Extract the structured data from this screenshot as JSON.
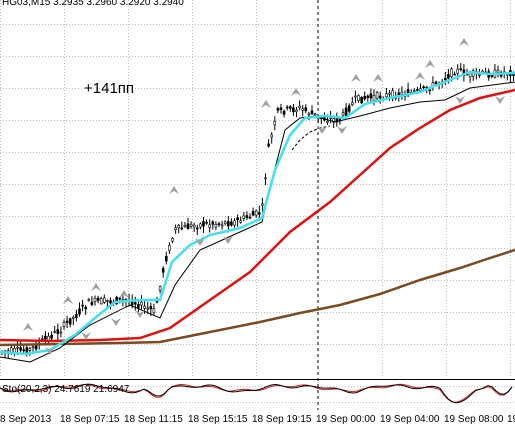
{
  "header": {
    "symbol_timeframe": "HG03,M15",
    "quote_values": "3.2935 3.2960 3.2920 3.2940"
  },
  "annotation": {
    "text": "+141пп"
  },
  "indicator": {
    "label": "Sto(20,2,3) 24.7619 21.6947"
  },
  "time_axis": {
    "labels": [
      "8 Sep 2013",
      "18 Sep 07:15",
      "18 Sep 11:15",
      "18 Sep 15:15",
      "18 Sep 19:15",
      "19 Sep 00:00",
      "19 Sep 04:00",
      "19 Sep 08:00",
      "19"
    ]
  },
  "colors": {
    "background": "#ffffff",
    "grid": "#c0c0c0",
    "candles": "#000000",
    "fast_ma": "#40e0f0",
    "mid_ma": "#e01010",
    "slow_ma": "#7a4a20",
    "channel": "#000000",
    "fractal": "#a0a0a0",
    "stoch_main": "#d02020",
    "stoch_signal": "#000000",
    "period_separator": "#000000"
  }
}
